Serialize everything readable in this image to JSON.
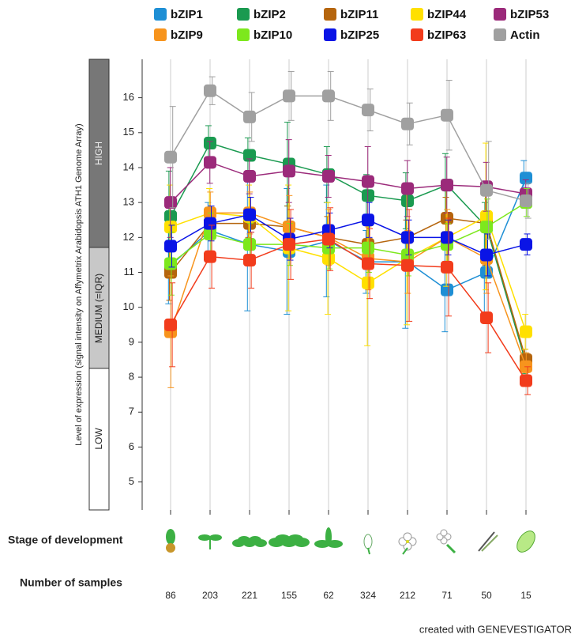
{
  "chart_data": {
    "type": "line",
    "y_label": "Level of expression (signal intensity on Affymetrix Arabidopsis ATH1 Genome Array)",
    "bands": [
      "HIGH",
      "MEDIUM (=IQR)",
      "LOW"
    ],
    "categories": [
      null,
      null,
      null,
      null,
      null,
      null,
      null,
      null,
      null,
      null
    ],
    "stage_label": "Stage of development",
    "samples_label": "Number of samples",
    "sample_counts": [
      86,
      203,
      221,
      155,
      62,
      324,
      212,
      71,
      50,
      15
    ],
    "footer": "created with GENEVESTIGATOR",
    "ylim": [
      4.2,
      17.1
    ],
    "yticks": [
      5,
      6,
      7,
      8,
      9,
      10,
      11,
      12,
      13,
      14,
      15,
      16
    ],
    "grid": true,
    "series": [
      {
        "name": "bZIP1",
        "color": "#1e8fd5",
        "values": [
          11.2,
          12.2,
          11.8,
          11.6,
          11.9,
          11.3,
          11.3,
          10.5,
          11.0,
          13.7
        ],
        "errors": [
          1.1,
          0.8,
          1.9,
          1.8,
          1.6,
          0.9,
          1.9,
          1.2,
          1.3,
          0.5
        ]
      },
      {
        "name": "bZIP2",
        "color": "#1a9a50",
        "values": [
          12.6,
          14.7,
          14.35,
          14.1,
          13.8,
          13.2,
          13.05,
          13.5,
          12.3,
          8.4
        ],
        "errors": [
          1.3,
          0.5,
          0.5,
          1.2,
          0.8,
          0.6,
          0.8,
          0.9,
          0.7,
          0.3
        ]
      },
      {
        "name": "bZIP11",
        "color": "#b5650d",
        "values": [
          11.0,
          12.4,
          12.4,
          12.3,
          12.0,
          11.8,
          12.0,
          12.55,
          12.4,
          8.5
        ],
        "errors": [
          0.8,
          0.4,
          0.4,
          0.6,
          0.6,
          0.6,
          0.5,
          0.6,
          1.2,
          0.3
        ]
      },
      {
        "name": "bZIP44",
        "color": "#ffe000",
        "values": [
          12.3,
          12.7,
          12.6,
          11.7,
          11.4,
          10.7,
          11.4,
          12.0,
          12.6,
          9.3
        ],
        "errors": [
          1.2,
          0.7,
          0.9,
          1.8,
          1.6,
          1.8,
          1.9,
          1.4,
          2.1,
          0.5
        ]
      },
      {
        "name": "bZIP53",
        "color": "#9b2a7a",
        "values": [
          13.0,
          14.15,
          13.75,
          13.9,
          13.75,
          13.6,
          13.4,
          13.5,
          13.45,
          13.25
        ],
        "errors": [
          1.0,
          0.6,
          0.5,
          0.9,
          0.6,
          1.0,
          0.8,
          0.8,
          0.7,
          0.4
        ]
      },
      {
        "name": "bZIP9",
        "color": "#f7941d",
        "values": [
          9.3,
          12.7,
          12.7,
          12.3,
          12.0,
          11.4,
          11.3,
          12.0,
          11.4,
          8.3
        ],
        "errors": [
          1.6,
          0.6,
          0.6,
          0.9,
          0.8,
          0.9,
          0.9,
          0.8,
          1.0,
          0.4
        ]
      },
      {
        "name": "bZIP10",
        "color": "#7de81d",
        "values": [
          11.25,
          12.1,
          11.8,
          11.8,
          11.7,
          11.7,
          11.5,
          11.8,
          12.3,
          13.0
        ],
        "errors": [
          0.9,
          0.6,
          0.6,
          0.6,
          0.6,
          0.7,
          0.6,
          0.6,
          0.8,
          0.4
        ]
      },
      {
        "name": "bZIP25",
        "color": "#0a14e6",
        "values": [
          11.75,
          12.4,
          12.65,
          11.95,
          12.2,
          12.5,
          12.0,
          12.0,
          11.5,
          11.8
        ],
        "errors": [
          0.6,
          0.5,
          0.5,
          0.6,
          0.5,
          0.5,
          0.5,
          0.5,
          0.6,
          0.3
        ]
      },
      {
        "name": "bZIP63",
        "color": "#f23c1c",
        "values": [
          9.5,
          11.45,
          11.35,
          11.8,
          11.95,
          11.25,
          11.2,
          11.15,
          9.7,
          7.9
        ],
        "errors": [
          1.2,
          0.9,
          0.8,
          1.0,
          0.9,
          1.0,
          1.6,
          1.4,
          1.0,
          0.4
        ]
      },
      {
        "name": "Actin",
        "color": "#a0a0a0",
        "values": [
          14.3,
          16.2,
          15.45,
          16.05,
          16.05,
          15.65,
          15.25,
          15.5,
          13.35,
          13.05
        ],
        "errors": [
          1.45,
          0.4,
          0.7,
          0.7,
          0.7,
          0.6,
          0.6,
          1.0,
          1.4,
          0.5
        ]
      }
    ]
  }
}
